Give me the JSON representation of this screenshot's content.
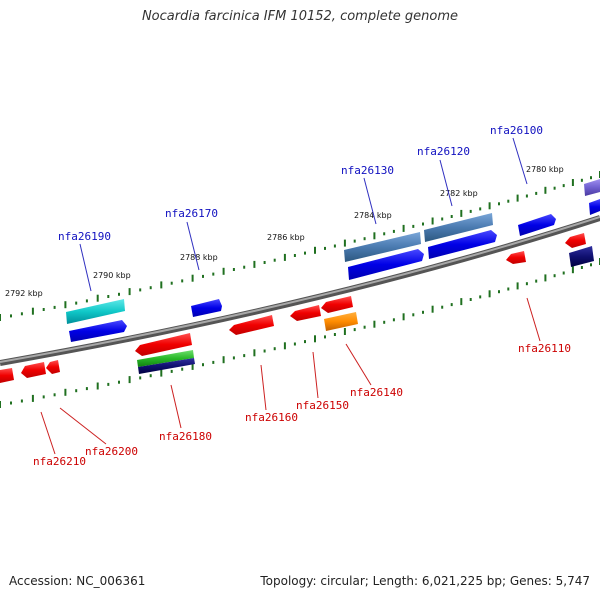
{
  "title": "Nocardia farcinica IFM 10152, complete genome",
  "footer": {
    "accession": "Accession: NC_006361",
    "topology": "Topology: circular; Length: 6,021,225 bp; Genes: 5,747"
  },
  "scale_labels": [
    "2792 kbp",
    "2790 kbp",
    "2788 kbp",
    "2786 kbp",
    "2784 kbp",
    "2782 kbp",
    "2780 kbp"
  ],
  "gene_labels_top": [
    "nfa26190",
    "nfa26170",
    "nfa26130",
    "nfa26120",
    "nfa26100"
  ],
  "gene_labels_bottom": [
    "nfa26210",
    "nfa26200",
    "nfa26180",
    "nfa26160",
    "nfa26150",
    "nfa26140",
    "nfa26110"
  ],
  "colors": {
    "forward_label": "#1010c0",
    "reverse_label": "#cc0000",
    "backbone": "#808080",
    "tick": "#207020"
  }
}
